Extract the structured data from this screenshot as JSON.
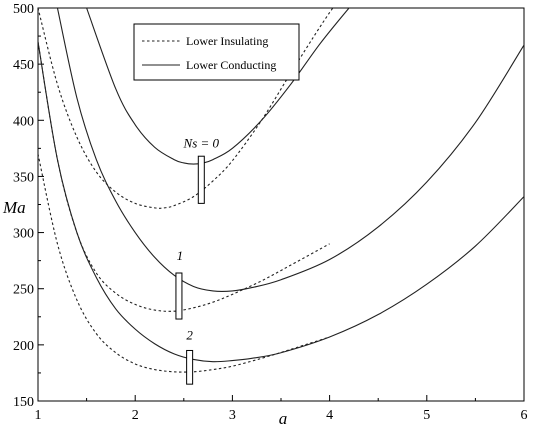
{
  "chart_data": {
    "type": "line",
    "xlabel": "a",
    "ylabel": "Ma",
    "xlim": [
      1,
      6
    ],
    "ylim": [
      150,
      500
    ],
    "xticks": [
      1,
      2,
      3,
      4,
      5,
      6
    ],
    "yticks": [
      150,
      200,
      250,
      300,
      350,
      400,
      450,
      500
    ],
    "grid": false,
    "legend_position": "top-left",
    "legend": [
      {
        "label": "Lower Insulating",
        "style": "dashed"
      },
      {
        "label": "Lower Conducting",
        "style": "solid"
      }
    ],
    "series": [
      {
        "group": "Ns = 0",
        "type": "Lower Conducting",
        "style": "solid",
        "x": [
          1.5,
          1.8,
          2.0,
          2.2,
          2.4,
          2.5,
          2.6,
          2.7,
          2.8,
          3.0,
          3.3,
          3.6,
          3.9,
          4.2,
          4.4
        ],
        "y": [
          500,
          428,
          396,
          376,
          365,
          362,
          361,
          362,
          365,
          375,
          400,
          432,
          468,
          500,
          520
        ]
      },
      {
        "group": "Ns = 0",
        "type": "Lower Insulating",
        "style": "dashed",
        "x": [
          1.0,
          1.2,
          1.4,
          1.6,
          1.8,
          2.0,
          2.2,
          2.3,
          2.4,
          2.6,
          2.8,
          3.0,
          3.3,
          3.6,
          3.9,
          4.1,
          4.3
        ],
        "y": [
          500,
          432,
          385,
          354,
          336,
          326,
          322,
          322,
          324,
          332,
          346,
          364,
          400,
          442,
          483,
          508,
          530
        ]
      },
      {
        "group": "1",
        "type": "Lower Conducting",
        "style": "solid",
        "x": [
          1.2,
          1.4,
          1.6,
          1.8,
          2.0,
          2.2,
          2.4,
          2.6,
          2.8,
          3.0,
          3.2,
          3.5,
          4.0,
          4.5,
          5.0,
          5.5,
          6.0
        ],
        "y": [
          500,
          420,
          365,
          328,
          300,
          278,
          262,
          252,
          248,
          248,
          251,
          258,
          276,
          305,
          345,
          398,
          467
        ]
      },
      {
        "group": "1",
        "type": "Lower Insulating",
        "style": "dashed",
        "x": [
          1.0,
          1.2,
          1.4,
          1.6,
          1.8,
          2.0,
          2.2,
          2.4,
          2.6,
          2.8,
          3.0,
          3.3,
          3.6,
          4.0
        ],
        "y": [
          470,
          365,
          300,
          264,
          246,
          236,
          231,
          230,
          233,
          238,
          245,
          257,
          271,
          290
        ]
      },
      {
        "group": "2",
        "type": "Lower Conducting",
        "style": "solid",
        "x": [
          1.0,
          1.2,
          1.4,
          1.6,
          1.8,
          2.0,
          2.2,
          2.4,
          2.6,
          2.8,
          3.0,
          3.2,
          3.5,
          4.0,
          4.5,
          5.0,
          5.5,
          6.0
        ],
        "y": [
          470,
          365,
          300,
          260,
          232,
          214,
          201,
          192,
          187,
          185,
          186,
          188,
          193,
          207,
          227,
          254,
          288,
          332
        ]
      },
      {
        "group": "2",
        "type": "Lower Insulating",
        "style": "dashed",
        "x": [
          1.0,
          1.2,
          1.4,
          1.6,
          1.8,
          2.0,
          2.2,
          2.4,
          2.6,
          2.8,
          3.0,
          3.3,
          3.6,
          4.0
        ],
        "y": [
          370,
          290,
          240,
          210,
          193,
          183,
          178,
          176,
          176,
          178,
          181,
          188,
          196,
          207
        ]
      }
    ],
    "annotations": [
      {
        "text": "Ns = 0",
        "x": 2.68,
        "y": 372
      },
      {
        "text": "1",
        "x": 2.46,
        "y": 272
      },
      {
        "text": "2",
        "x": 2.56,
        "y": 201
      }
    ],
    "markers": [
      {
        "x": 2.68,
        "y_low": 326,
        "y_high": 368
      },
      {
        "x": 2.45,
        "y_low": 223,
        "y_high": 264
      },
      {
        "x": 2.56,
        "y_low": 165,
        "y_high": 195
      }
    ]
  }
}
